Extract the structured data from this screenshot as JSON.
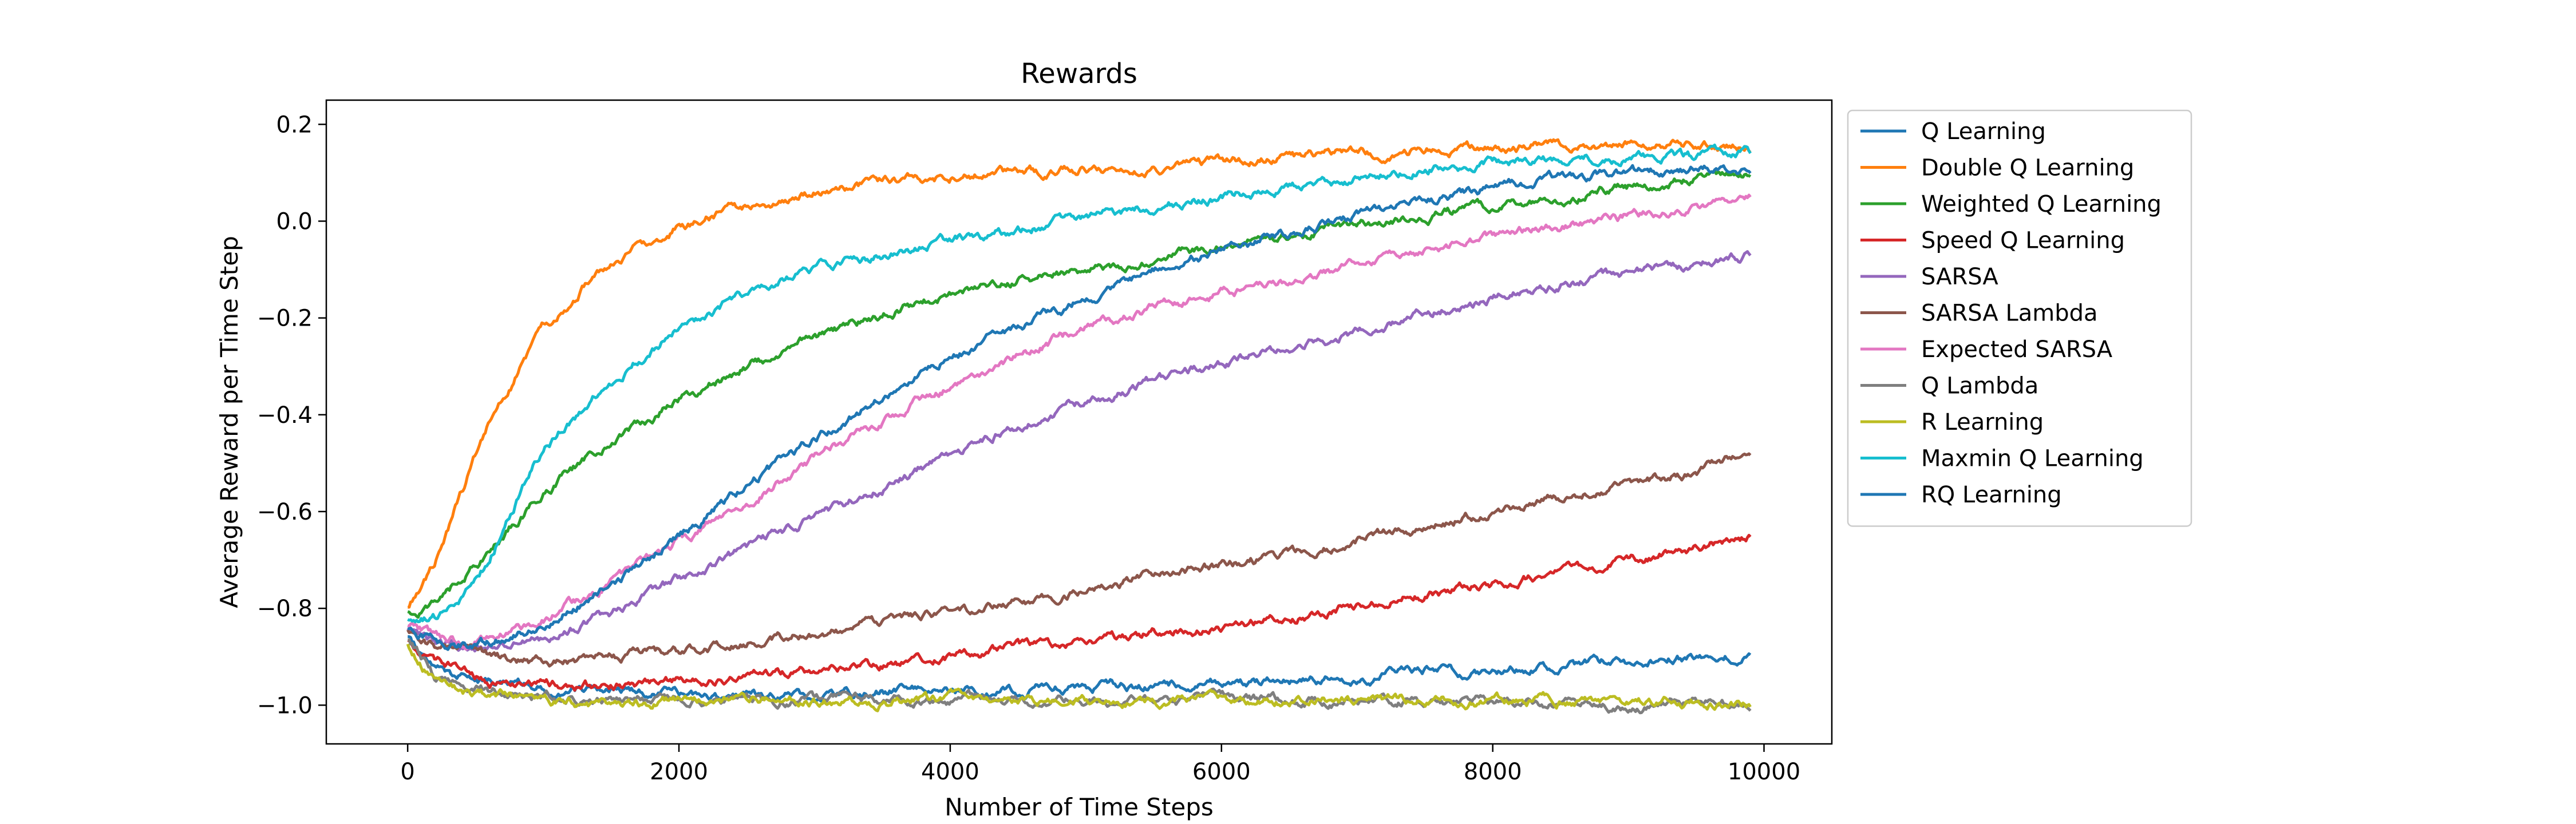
{
  "chart_data": {
    "type": "line",
    "title": "Rewards",
    "xlabel": "Number of Time Steps",
    "ylabel": "Average Reward per Time Step",
    "xlim": [
      -600,
      10500
    ],
    "ylim": [
      -1.08,
      0.25
    ],
    "x_ticks": [
      0,
      2000,
      4000,
      6000,
      8000,
      10000
    ],
    "x_tick_labels": [
      "0",
      "2000",
      "4000",
      "6000",
      "8000",
      "10000"
    ],
    "y_ticks": [
      -1.0,
      -0.8,
      -0.6,
      -0.4,
      -0.2,
      0.0,
      0.2
    ],
    "y_tick_labels": [
      "−1.0",
      "−0.8",
      "−0.6",
      "−0.4",
      "−0.2",
      "0.0",
      "0.2"
    ],
    "grid": false,
    "legend_position": "outside-right-top",
    "x": [
      0,
      200,
      400,
      600,
      800,
      1000,
      1500,
      2000,
      2500,
      3000,
      3500,
      4000,
      4500,
      5000,
      5500,
      6000,
      6500,
      7000,
      7500,
      8000,
      8500,
      9000,
      9500,
      9900
    ],
    "series": [
      {
        "name": "Q Learning",
        "color": "#1f77b4",
        "values": [
          -0.86,
          -0.92,
          -0.94,
          -0.95,
          -0.96,
          -0.96,
          -0.97,
          -0.98,
          -0.98,
          -0.98,
          -0.97,
          -0.97,
          -0.97,
          -0.96,
          -0.96,
          -0.95,
          -0.95,
          -0.94,
          -0.93,
          -0.93,
          -0.92,
          -0.91,
          -0.9,
          -0.89
        ]
      },
      {
        "name": "Double Q Learning",
        "color": "#ff7f0e",
        "values": [
          -0.8,
          -0.7,
          -0.56,
          -0.42,
          -0.32,
          -0.22,
          -0.08,
          -0.01,
          0.03,
          0.06,
          0.08,
          0.09,
          0.1,
          0.11,
          0.11,
          0.12,
          0.13,
          0.14,
          0.15,
          0.15,
          0.16,
          0.16,
          0.16,
          0.15
        ]
      },
      {
        "name": "Weighted Q Learning",
        "color": "#2ca02c",
        "values": [
          -0.81,
          -0.79,
          -0.74,
          -0.68,
          -0.62,
          -0.56,
          -0.45,
          -0.37,
          -0.3,
          -0.24,
          -0.19,
          -0.15,
          -0.12,
          -0.1,
          -0.08,
          -0.05,
          -0.03,
          -0.01,
          0.01,
          0.03,
          0.05,
          0.07,
          0.09,
          0.1
        ]
      },
      {
        "name": "Speed Q Learning",
        "color": "#d62728",
        "values": [
          -0.87,
          -0.91,
          -0.93,
          -0.95,
          -0.95,
          -0.96,
          -0.96,
          -0.95,
          -0.94,
          -0.93,
          -0.92,
          -0.9,
          -0.88,
          -0.87,
          -0.85,
          -0.84,
          -0.82,
          -0.79,
          -0.77,
          -0.75,
          -0.72,
          -0.7,
          -0.67,
          -0.65
        ]
      },
      {
        "name": "SARSA",
        "color": "#9467bd",
        "values": [
          -0.85,
          -0.87,
          -0.88,
          -0.88,
          -0.87,
          -0.86,
          -0.81,
          -0.74,
          -0.68,
          -0.61,
          -0.55,
          -0.48,
          -0.42,
          -0.37,
          -0.33,
          -0.29,
          -0.26,
          -0.23,
          -0.19,
          -0.16,
          -0.13,
          -0.11,
          -0.09,
          -0.07
        ]
      },
      {
        "name": "SARSA Lambda",
        "color": "#8c564b",
        "values": [
          -0.85,
          -0.88,
          -0.89,
          -0.9,
          -0.91,
          -0.91,
          -0.9,
          -0.89,
          -0.87,
          -0.85,
          -0.83,
          -0.81,
          -0.79,
          -0.76,
          -0.73,
          -0.71,
          -0.69,
          -0.66,
          -0.63,
          -0.6,
          -0.57,
          -0.54,
          -0.52,
          -0.48
        ]
      },
      {
        "name": "Expected SARSA",
        "color": "#e377c2",
        "values": [
          -0.83,
          -0.86,
          -0.87,
          -0.86,
          -0.84,
          -0.82,
          -0.75,
          -0.66,
          -0.58,
          -0.49,
          -0.41,
          -0.34,
          -0.28,
          -0.22,
          -0.18,
          -0.15,
          -0.12,
          -0.09,
          -0.06,
          -0.03,
          -0.01,
          0.01,
          0.03,
          0.05
        ]
      },
      {
        "name": "Q Lambda",
        "color": "#7f7f7f",
        "values": [
          -0.86,
          -0.94,
          -0.96,
          -0.97,
          -0.98,
          -0.98,
          -0.99,
          -0.99,
          -0.99,
          -0.99,
          -0.99,
          -0.99,
          -0.99,
          -0.99,
          -0.99,
          -0.99,
          -0.99,
          -0.99,
          -0.99,
          -0.99,
          -1.0,
          -1.0,
          -0.99,
          -1.0
        ]
      },
      {
        "name": "R Learning",
        "color": "#bcbd22",
        "values": [
          -0.87,
          -0.95,
          -0.97,
          -0.98,
          -0.98,
          -0.99,
          -1.0,
          -0.99,
          -0.99,
          -0.99,
          -0.99,
          -0.99,
          -0.99,
          -0.99,
          -0.99,
          -0.99,
          -0.99,
          -0.99,
          -0.99,
          -0.99,
          -0.99,
          -1.0,
          -0.99,
          -1.0
        ]
      },
      {
        "name": "Maxmin Q Learning",
        "color": "#17becf",
        "values": [
          -0.82,
          -0.82,
          -0.78,
          -0.7,
          -0.58,
          -0.47,
          -0.33,
          -0.22,
          -0.15,
          -0.1,
          -0.07,
          -0.04,
          -0.02,
          0.01,
          0.03,
          0.05,
          0.07,
          0.09,
          0.11,
          0.12,
          0.13,
          0.13,
          0.13,
          0.14
        ]
      },
      {
        "name": "RQ Learning",
        "color": "#1f77b4",
        "values": [
          -0.84,
          -0.87,
          -0.88,
          -0.87,
          -0.85,
          -0.83,
          -0.75,
          -0.65,
          -0.55,
          -0.45,
          -0.36,
          -0.28,
          -0.22,
          -0.16,
          -0.1,
          -0.06,
          -0.02,
          0.01,
          0.04,
          0.07,
          0.09,
          0.1,
          0.11,
          0.11
        ]
      }
    ]
  }
}
